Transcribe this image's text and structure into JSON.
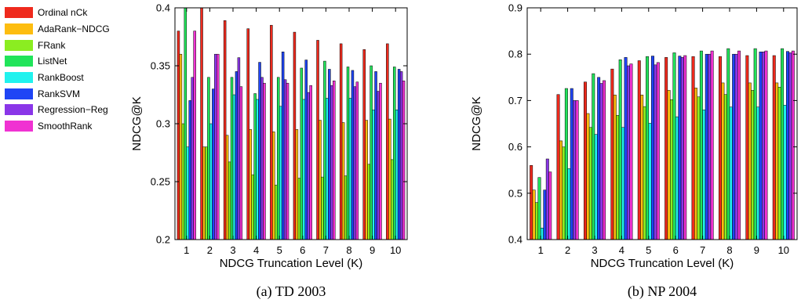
{
  "series_colors": [
    "#ef2a1d",
    "#fdbd10",
    "#8bed21",
    "#21e45a",
    "#20f2ee",
    "#1f45f5",
    "#8a36e8",
    "#f032d2"
  ],
  "chart_data": [
    {
      "type": "bar",
      "caption": "(a) TD 2003",
      "xlabel": "NDCG Truncation Level (K)",
      "ylabel": "NDCG@K",
      "ylim": [
        0.2,
        0.4
      ],
      "yticks": [
        "0.2",
        "0.25",
        "0.3",
        "0.35",
        "0.4"
      ],
      "ytick_values": [
        0.2,
        0.25,
        0.3,
        0.35,
        0.4
      ],
      "categories": [
        "1",
        "2",
        "3",
        "4",
        "5",
        "6",
        "7",
        "8",
        "9",
        "10"
      ],
      "legend_position": "left",
      "grid": false,
      "series": [
        {
          "name": "Ordinal nCk",
          "values": [
            0.38,
            0.4,
            0.389,
            0.382,
            0.385,
            0.379,
            0.372,
            0.369,
            0.364,
            0.369
          ]
        },
        {
          "name": "AdaRank−NDCG",
          "values": [
            0.36,
            0.28,
            0.29,
            0.295,
            0.293,
            0.295,
            0.303,
            0.301,
            0.303,
            0.304
          ]
        },
        {
          "name": "FRank",
          "values": [
            0.3,
            0.28,
            0.267,
            0.256,
            0.247,
            0.253,
            0.254,
            0.255,
            0.265,
            0.269
          ]
        },
        {
          "name": "ListNet",
          "values": [
            0.4,
            0.34,
            0.34,
            0.326,
            0.34,
            0.348,
            0.354,
            0.349,
            0.35,
            0.349
          ]
        },
        {
          "name": "RankBoost",
          "values": [
            0.28,
            0.3,
            0.325,
            0.321,
            0.315,
            0.321,
            0.322,
            0.322,
            0.312,
            0.312
          ]
        },
        {
          "name": "RankSVM",
          "values": [
            0.32,
            0.33,
            0.345,
            0.353,
            0.362,
            0.355,
            0.347,
            0.346,
            0.345,
            0.347
          ]
        },
        {
          "name": "Regression−Reg",
          "values": [
            0.34,
            0.36,
            0.357,
            0.34,
            0.338,
            0.327,
            0.333,
            0.332,
            0.328,
            0.345
          ]
        },
        {
          "name": "SmoothRank",
          "values": [
            0.38,
            0.36,
            0.332,
            0.335,
            0.335,
            0.333,
            0.337,
            0.336,
            0.335,
            0.337
          ]
        }
      ]
    },
    {
      "type": "bar",
      "caption": "(b) NP 2004",
      "xlabel": "NDCG Truncation Level (K)",
      "ylabel": "NDCG@K",
      "ylim": [
        0.4,
        0.9
      ],
      "yticks": [
        "0.4",
        "0.5",
        "0.6",
        "0.7",
        "0.8",
        "0.9"
      ],
      "ytick_values": [
        0.4,
        0.5,
        0.6,
        0.7,
        0.8,
        0.9
      ],
      "categories": [
        "1",
        "2",
        "3",
        "4",
        "5",
        "6",
        "7",
        "8",
        "9",
        "10"
      ],
      "grid": false,
      "series": [
        {
          "name": "Ordinal nCk",
          "values": [
            0.56,
            0.713,
            0.74,
            0.768,
            0.786,
            0.793,
            0.795,
            0.795,
            0.797,
            0.797
          ]
        },
        {
          "name": "AdaRank−NDCG",
          "values": [
            0.507,
            0.613,
            0.672,
            0.712,
            0.712,
            0.722,
            0.727,
            0.738,
            0.738,
            0.738
          ]
        },
        {
          "name": "FRank",
          "values": [
            0.48,
            0.6,
            0.642,
            0.668,
            0.687,
            0.702,
            0.708,
            0.713,
            0.722,
            0.729
          ]
        },
        {
          "name": "ListNet",
          "values": [
            0.534,
            0.726,
            0.758,
            0.788,
            0.795,
            0.803,
            0.807,
            0.812,
            0.812,
            0.812
          ]
        },
        {
          "name": "RankBoost",
          "values": [
            0.425,
            0.553,
            0.627,
            0.642,
            0.651,
            0.665,
            0.68,
            0.686,
            0.686,
            0.69
          ]
        },
        {
          "name": "RankSVM",
          "values": [
            0.507,
            0.726,
            0.75,
            0.793,
            0.796,
            0.796,
            0.8,
            0.8,
            0.805,
            0.806
          ]
        },
        {
          "name": "Regression−Reg",
          "values": [
            0.574,
            0.7,
            0.737,
            0.775,
            0.777,
            0.793,
            0.8,
            0.8,
            0.805,
            0.803
          ]
        },
        {
          "name": "SmoothRank",
          "values": [
            0.546,
            0.7,
            0.743,
            0.779,
            0.782,
            0.797,
            0.807,
            0.807,
            0.807,
            0.807
          ]
        }
      ]
    }
  ]
}
